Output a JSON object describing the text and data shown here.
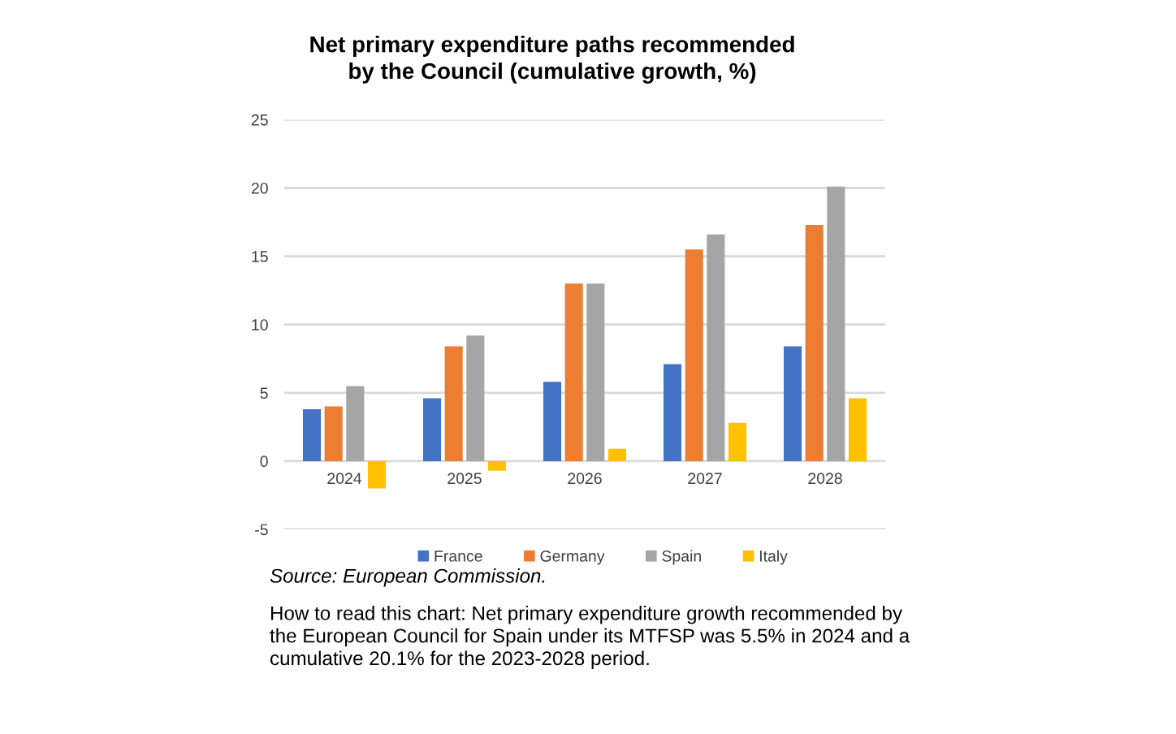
{
  "chart_data": {
    "type": "bar",
    "title": "Net primary expenditure paths recommended by the Council (cumulative growth, %)",
    "categories": [
      "2024",
      "2025",
      "2026",
      "2027",
      "2028"
    ],
    "series": [
      {
        "name": "France",
        "color": "#4472c4",
        "values": [
          3.8,
          4.6,
          5.8,
          7.1,
          8.4
        ]
      },
      {
        "name": "Germany",
        "color": "#ed7d31",
        "values": [
          4.0,
          8.4,
          13.0,
          15.5,
          17.3
        ]
      },
      {
        "name": "Spain",
        "color": "#a5a5a5",
        "values": [
          5.5,
          9.2,
          13.0,
          16.6,
          20.1
        ]
      },
      {
        "name": "Italy",
        "color": "#ffc000",
        "values": [
          -2.0,
          -0.7,
          0.9,
          2.8,
          4.6
        ]
      }
    ],
    "ylim": [
      -5,
      25
    ],
    "yticks": [
      -5,
      0,
      5,
      10,
      15,
      20,
      25
    ],
    "grid": "y",
    "legend": "bottom",
    "annotations": [
      "Source: European Commission.",
      "How to read this chart: Net primary expenditure growth recommended by the European Council for Spain under its MTFSP was 5.5% in 2024 and a cumulative 20.1% for the 2023-2028 period."
    ]
  }
}
